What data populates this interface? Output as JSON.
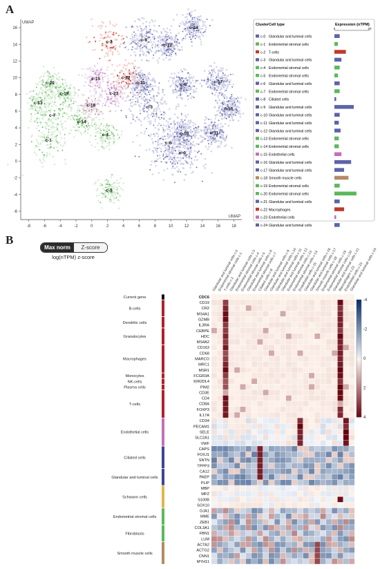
{
  "panels": {
    "a": "A",
    "b": "B"
  },
  "umap": {
    "axis_label_x": "UMAP",
    "axis_label_y": "UMAP",
    "x_ticks": [
      -8,
      -6,
      -4,
      -2,
      0,
      2,
      4,
      6,
      8,
      10,
      12,
      14,
      16,
      18
    ],
    "y_ticks": [
      16,
      14,
      12,
      10,
      8,
      6,
      4,
      2,
      0,
      -2,
      -4,
      -6
    ],
    "xlim": [
      -9,
      19
    ],
    "ylim": [
      -7,
      17
    ]
  },
  "colors": {
    "glandular": "#5d63a8",
    "glandular_light": "#c9cbe3",
    "stromal": "#5cb85c",
    "stromal_light": "#cfe9cc",
    "tcell": "#c0392b",
    "tcell_light": "#f2c6c1",
    "endothelial": "#c370b7",
    "smooth": "#b38a67",
    "ciliated": "#5d63a8",
    "macro": "#c0392b"
  },
  "chart_data": [
    {
      "type": "scatter",
      "xlabel": "UMAP",
      "ylabel": "UMAP",
      "clusters": [
        {
          "label": "c-0",
          "x": 11.5,
          "y": 1.0,
          "group": "glandular"
        },
        {
          "label": "c-1",
          "x": -5.5,
          "y": 2.5,
          "group": "stromal"
        },
        {
          "label": "c-2",
          "x": 2.2,
          "y": 14.3,
          "group": "tcell"
        },
        {
          "label": "c-3",
          "x": 7.3,
          "y": 6.5,
          "group": "glandular"
        },
        {
          "label": "c-4",
          "x": 1.7,
          "y": 3.2,
          "group": "stromal"
        },
        {
          "label": "c-5",
          "x": 2.2,
          "y": -3.5,
          "group": "stromal"
        },
        {
          "label": "c-6",
          "x": 9.7,
          "y": 2.2,
          "group": "glandular"
        },
        {
          "label": "c-7",
          "x": -5.0,
          "y": 5.5,
          "group": "stromal"
        },
        {
          "label": "c-8",
          "x": 11.6,
          "y": 9.2,
          "group": "glandular"
        },
        {
          "label": "c-9",
          "x": 6.6,
          "y": 14.5,
          "group": "glandular"
        },
        {
          "label": "c-10",
          "x": 11.7,
          "y": 3.3,
          "group": "glandular"
        },
        {
          "label": "c-11",
          "x": 15.5,
          "y": 3.4,
          "group": "glandular"
        },
        {
          "label": "c-12",
          "x": 9.6,
          "y": 13.9,
          "group": "glandular"
        },
        {
          "label": "c-13",
          "x": -6.8,
          "y": 7.0,
          "group": "stromal"
        },
        {
          "label": "c-14",
          "x": -1.3,
          "y": 4.7,
          "group": "stromal"
        },
        {
          "label": "c-15",
          "x": 0.5,
          "y": 9.9,
          "group": "endothelial"
        },
        {
          "label": "c-16",
          "x": 17.3,
          "y": 6.3,
          "group": "glandular"
        },
        {
          "label": "c-17",
          "x": 16.0,
          "y": 9.5,
          "group": "glandular"
        },
        {
          "label": "c-18",
          "x": -0.1,
          "y": 6.7,
          "group": "smooth"
        },
        {
          "label": "c-19",
          "x": -3.5,
          "y": 8.1,
          "group": "stromal"
        },
        {
          "label": "c-20",
          "x": -5.3,
          "y": 9.4,
          "group": "stromal"
        },
        {
          "label": "c-21",
          "x": 6.2,
          "y": 9.4,
          "group": "glandular"
        },
        {
          "label": "c-22",
          "x": 4.3,
          "y": 10.0,
          "group": "macro"
        },
        {
          "label": "c-23",
          "x": 2.8,
          "y": 8.1,
          "group": "endothelial"
        },
        {
          "label": "c-24",
          "x": 12.9,
          "y": 16.0,
          "group": "glandular"
        }
      ]
    },
    {
      "type": "bar",
      "title": "",
      "headers": {
        "cluster": "Cluster",
        "cell_type": "Cell type",
        "expression": "Expression (nTPM)"
      },
      "xlim": [
        0,
        20
      ],
      "x_ticks": [
        "0",
        "20"
      ],
      "rows": [
        {
          "cluster": "c-0",
          "cell_type": "Glandular and luminal cells",
          "value": 3,
          "group": "glandular"
        },
        {
          "cluster": "c-1",
          "cell_type": "Endometrial stromal cells",
          "value": 2,
          "group": "stromal"
        },
        {
          "cluster": "c-2",
          "cell_type": "T-cells",
          "value": 6.5,
          "group": "tcell"
        },
        {
          "cluster": "c-3",
          "cell_type": "Glandular and luminal cells",
          "value": 4,
          "group": "glandular"
        },
        {
          "cluster": "c-4",
          "cell_type": "Endometrial stromal cells",
          "value": 3,
          "group": "stromal"
        },
        {
          "cluster": "c-5",
          "cell_type": "Endometrial stromal cells",
          "value": 2,
          "group": "stromal"
        },
        {
          "cluster": "c-6",
          "cell_type": "Glandular and luminal cells",
          "value": 3,
          "group": "glandular"
        },
        {
          "cluster": "c-7",
          "cell_type": "Endometrial stromal cells",
          "value": 3,
          "group": "stromal"
        },
        {
          "cluster": "c-8",
          "cell_type": "Ciliated cells",
          "value": 1,
          "group": "ciliated"
        },
        {
          "cluster": "c-9",
          "cell_type": "Glandular and luminal cells",
          "value": 11,
          "group": "glandular"
        },
        {
          "cluster": "c-10",
          "cell_type": "Glandular and luminal cells",
          "value": 3,
          "group": "glandular"
        },
        {
          "cluster": "c-11",
          "cell_type": "Glandular and luminal cells",
          "value": 2.5,
          "group": "glandular"
        },
        {
          "cluster": "c-12",
          "cell_type": "Glandular and luminal cells",
          "value": 3.5,
          "group": "glandular"
        },
        {
          "cluster": "c-13",
          "cell_type": "Endometrial stromal cells",
          "value": 2.5,
          "group": "stromal"
        },
        {
          "cluster": "c-14",
          "cell_type": "Endometrial stromal cells",
          "value": 2.5,
          "group": "stromal"
        },
        {
          "cluster": "c-15",
          "cell_type": "Endothelial cells",
          "value": 4,
          "group": "endothelial"
        },
        {
          "cluster": "c-16",
          "cell_type": "Glandular and luminal cells",
          "value": 9.5,
          "group": "glandular"
        },
        {
          "cluster": "c-17",
          "cell_type": "Glandular and luminal cells",
          "value": 5.5,
          "group": "glandular"
        },
        {
          "cluster": "c-18",
          "cell_type": "Smooth muscle cells",
          "value": 8,
          "group": "smooth"
        },
        {
          "cluster": "c-19",
          "cell_type": "Endometrial stromal cells",
          "value": 3,
          "group": "stromal"
        },
        {
          "cluster": "c-20",
          "cell_type": "Endometrial stromal cells",
          "value": 12.5,
          "group": "stromal"
        },
        {
          "cluster": "c-21",
          "cell_type": "Glandular and luminal cells",
          "value": 3,
          "group": "glandular"
        },
        {
          "cluster": "c-22",
          "cell_type": "Macrophages",
          "value": 5.5,
          "group": "macro"
        },
        {
          "cluster": "c-23",
          "cell_type": "Endothelial cells",
          "value": 1,
          "group": "endothelial"
        },
        {
          "cluster": "c-24",
          "cell_type": "Glandular and luminal cells",
          "value": 3,
          "group": "glandular"
        }
      ]
    },
    {
      "type": "heatmap",
      "toggle": {
        "active": "Max norm",
        "inactive": "Z-score"
      },
      "scale_label": "log(nTPM) z-score",
      "vlim": [
        -4,
        4
      ],
      "colorbar_ticks": [
        -4,
        -2,
        0,
        2,
        4
      ],
      "columns": [
        "Glandular and luminal cells c-0",
        "Endometrial stromal cells c-1",
        "T-cells c-2",
        "Glandular and luminal cells c-3",
        "Endometrial stromal cells c-4",
        "Endometrial stromal cells c-5",
        "Glandular and luminal cells c-6",
        "Endometrial stromal cells c-7",
        "Ciliated cells c-8",
        "Glandular and luminal cells c-9",
        "Glandular and luminal cells c-10",
        "Glandular and luminal cells c-11",
        "Glandular and luminal cells c-12",
        "Endometrial stromal cells c-13",
        "Endometrial stromal cells c-14",
        "Endothelial cells c-15",
        "Glandular and luminal cells c-16",
        "Glandular and luminal cells c-17",
        "Smooth muscle cells c-18",
        "Endometrial stromal cells c-19",
        "Endometrial stromal cells c-20",
        "Glandular and luminal cells c-21",
        "Macrophages c-22",
        "Endothelial cells c-23",
        "Glandular and luminal cells c-24"
      ],
      "groups": [
        {
          "name": "Current gene",
          "start": 0,
          "end": 0,
          "color": "#111111"
        },
        {
          "name": "B-cells",
          "start": 1,
          "end": 3,
          "color": "#b0202a"
        },
        {
          "name": "Dendritic cells",
          "start": 4,
          "end": 5,
          "color": "#b0202a"
        },
        {
          "name": "Granulocytes",
          "start": 6,
          "end": 8,
          "color": "#b0202a"
        },
        {
          "name": "Macrophages",
          "start": 9,
          "end": 13,
          "color": "#b0202a"
        },
        {
          "name": "Monocytes",
          "start": 14,
          "end": 14,
          "color": "#b0202a"
        },
        {
          "name": "NK-cells",
          "start": 15,
          "end": 15,
          "color": "#b0202a"
        },
        {
          "name": "Plasma cells",
          "start": 16,
          "end": 16,
          "color": "#b0202a"
        },
        {
          "name": "T-cells",
          "start": 17,
          "end": 21,
          "color": "#b0202a"
        },
        {
          "name": "Endothelial cells",
          "start": 22,
          "end": 26,
          "color": "#c370b7"
        },
        {
          "name": "Ciliated cells",
          "start": 27,
          "end": 30,
          "color": "#3b4595"
        },
        {
          "name": "Glandular and luminal cells",
          "start": 31,
          "end": 33,
          "color": "#3b4595"
        },
        {
          "name": "Schwann cells",
          "start": 34,
          "end": 37,
          "color": "#e6b24a"
        },
        {
          "name": "Endometrial stromal cells",
          "start": 38,
          "end": 40,
          "color": "#5cb85c"
        },
        {
          "name": "Fibroblasts",
          "start": 41,
          "end": 43,
          "color": "#5cb85c"
        },
        {
          "name": "Smooth muscle cells",
          "start": 44,
          "end": 47,
          "color": "#b38a67"
        }
      ],
      "genes": [
        "CDC6",
        "CD19",
        "CR2",
        "MS4A1",
        "GZMB",
        "IL3RA",
        "CEBPE",
        "HDC",
        "MS4A2",
        "CD163",
        "CD68",
        "MARCO",
        "MRC1",
        "MSR1",
        "FCGR3A",
        "KIR2DL4",
        "PIM2",
        "CD3E",
        "CD4",
        "CD8A",
        "FOXP3",
        "IL17A",
        "CD34",
        "PECAM1",
        "SELE",
        "SLC2A1",
        "VWF",
        "CAPS",
        "FOXJ1",
        "SNTN",
        "TPPP3",
        "CA12",
        "PAEP",
        "PLIP",
        "MBP",
        "MPZ",
        "S100B",
        "SOX10",
        "GJA1",
        "MME",
        "ZEB1",
        "COL3A1",
        "FBN1",
        "LUM",
        "ACTA2",
        "ACTG2",
        "CNN1",
        "MYH11"
      ]
    }
  ]
}
